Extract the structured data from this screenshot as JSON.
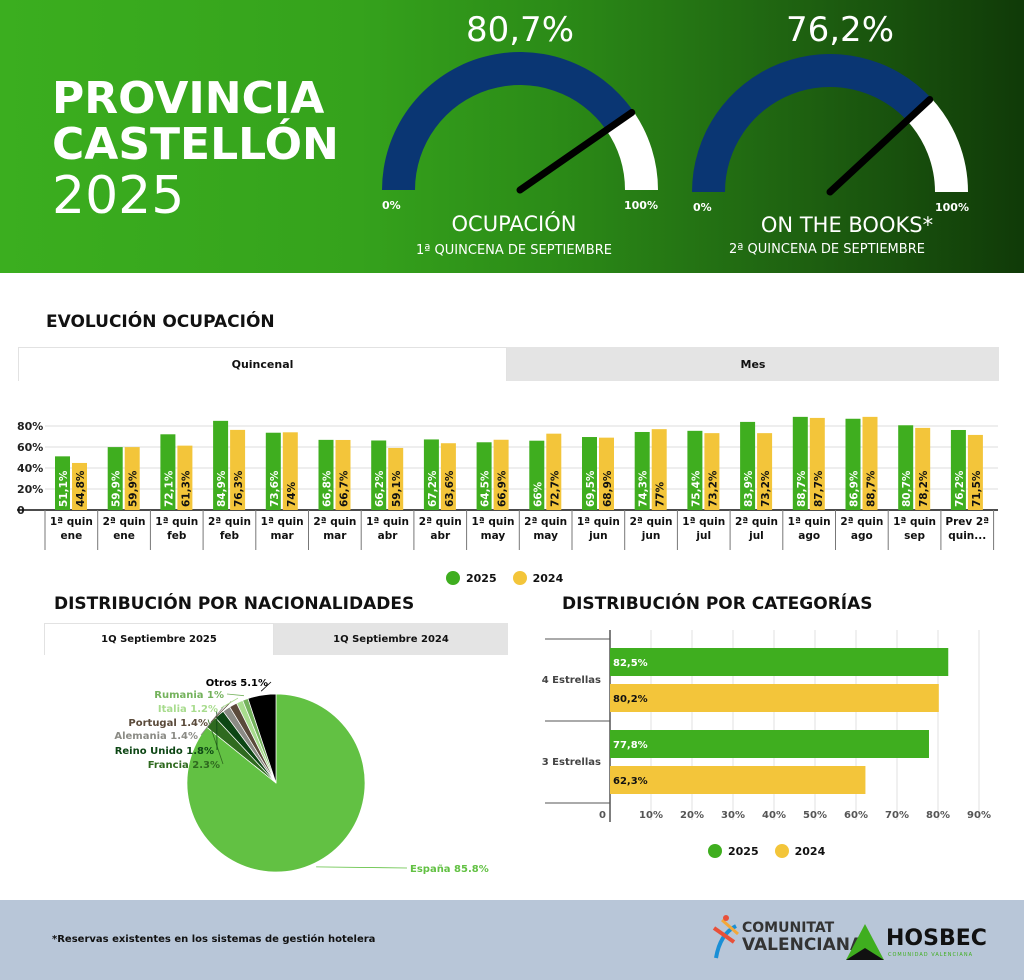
{
  "header": {
    "title_line1": "PROVINCIA",
    "title_line2": "CASTELLÓN",
    "title_line3": "2025",
    "gauges": [
      {
        "value_label": "80,7%",
        "value": 80.7,
        "min_label": "0%",
        "max_label": "100%",
        "name": "OCUPACIÓN",
        "sub": "1ª QUINCENA DE SEPTIEMBRE"
      },
      {
        "value_label": "76,2%",
        "value": 76.2,
        "min_label": "0%",
        "max_label": "100%",
        "name": "ON THE BOOKS*",
        "sub": "2ª QUINCENA DE SEPTIEMBRE"
      }
    ]
  },
  "colors": {
    "c2025": "#3fae1f",
    "c2024": "#f3c53a",
    "gauge_fill": "#0a3673"
  },
  "evolution": {
    "title": "EVOLUCIÓN OCUPACIÓN",
    "tabs": [
      "Quincenal",
      "Mes"
    ],
    "active_tab": "Quincenal"
  },
  "chart_data": [
    {
      "type": "bar",
      "title": "EVOLUCIÓN OCUPACIÓN",
      "ylim": [
        0,
        90
      ],
      "yticks": [
        "0",
        "20%",
        "40%",
        "60%",
        "80%"
      ],
      "categories": [
        [
          "1ª quin",
          "ene"
        ],
        [
          "2ª quin",
          "ene"
        ],
        [
          "1ª quin",
          "feb"
        ],
        [
          "2ª quin",
          "feb"
        ],
        [
          "1ª quin",
          "mar"
        ],
        [
          "2ª quin",
          "mar"
        ],
        [
          "1ª quin",
          "abr"
        ],
        [
          "2ª quin",
          "abr"
        ],
        [
          "1ª quin",
          "may"
        ],
        [
          "2ª quin",
          "may"
        ],
        [
          "1ª quin",
          "jun"
        ],
        [
          "2ª quin",
          "jun"
        ],
        [
          "1ª quin",
          "jul"
        ],
        [
          "2ª quin",
          "jul"
        ],
        [
          "1ª quin",
          "ago"
        ],
        [
          "2ª quin",
          "ago"
        ],
        [
          "1ª quin",
          "sep"
        ],
        [
          "Prev 2ª",
          "quin..."
        ]
      ],
      "series": [
        {
          "name": "2025",
          "values": [
            51.1,
            59.9,
            72.1,
            84.9,
            73.6,
            66.8,
            66.2,
            67.2,
            64.5,
            66,
            69.5,
            74.3,
            75.4,
            83.9,
            88.7,
            86.9,
            80.7,
            76.2
          ],
          "labels": [
            "51,1%",
            "59,9%",
            "72,1%",
            "84,9%",
            "73,6%",
            "66,8%",
            "66,2%",
            "67,2%",
            "64,5%",
            "66%",
            "69,5%",
            "74,3%",
            "75,4%",
            "83,9%",
            "88,7%",
            "86,9%",
            "80,7%",
            "76,2%"
          ]
        },
        {
          "name": "2024",
          "values": [
            44.8,
            59.9,
            61.3,
            76.3,
            74,
            66.7,
            59.1,
            63.6,
            66.9,
            72.7,
            68.9,
            77,
            73.2,
            73.2,
            87.7,
            88.7,
            78.2,
            71.5
          ],
          "labels": [
            "44,8%",
            "59,9%",
            "61,3%",
            "76,3%",
            "74%",
            "66,7%",
            "59,1%",
            "63,6%",
            "66,9%",
            "72,7%",
            "68,9%",
            "77%",
            "73,2%",
            "73,2%",
            "87,7%",
            "88,7%",
            "78,2%",
            "71,5%"
          ]
        }
      ],
      "legend": [
        "2025",
        "2024"
      ],
      "legend_position": "bottom"
    },
    {
      "type": "pie",
      "title": "DISTRIBUCIÓN POR NACIONALIDADES",
      "tabs": [
        "1Q Septiembre 2025",
        "1Q Septiembre 2024"
      ],
      "active_tab": "1Q Septiembre 2025",
      "slices": [
        {
          "label": "España 85.8%",
          "value": 85.8,
          "color": "#62c143"
        },
        {
          "label": "Francia 2.3%",
          "value": 2.3,
          "color": "#2f6a1f"
        },
        {
          "label": "Reino Unido 1.8%",
          "value": 1.8,
          "color": "#0d4614"
        },
        {
          "label": "Alemania 1.4%",
          "value": 1.4,
          "color": "#8b8b85"
        },
        {
          "label": "Portugal 1.4%",
          "value": 1.4,
          "color": "#5a4a3a"
        },
        {
          "label": "Italia 1.2%",
          "value": 1.2,
          "color": "#a8dc8e"
        },
        {
          "label": "Rumania 1%",
          "value": 1,
          "color": "#74b25c"
        },
        {
          "label": "Otros 5.1%",
          "value": 5.1,
          "color": "#000000"
        }
      ]
    },
    {
      "type": "bar",
      "orientation": "horizontal",
      "title": "DISTRIBUCIÓN POR CATEGORÍAS",
      "xlim": [
        0,
        90
      ],
      "xticks": [
        "0",
        "10%",
        "20%",
        "30%",
        "40%",
        "50%",
        "60%",
        "70%",
        "80%",
        "90%"
      ],
      "categories": [
        "4 Estrellas",
        "3 Estrellas"
      ],
      "series": [
        {
          "name": "2025",
          "values": [
            82.5,
            77.8
          ],
          "labels": [
            "82,5%",
            "77,8%"
          ]
        },
        {
          "name": "2024",
          "values": [
            80.2,
            62.3
          ],
          "labels": [
            "80,2%",
            "62,3%"
          ]
        }
      ],
      "legend": [
        "2025",
        "2024"
      ],
      "legend_position": "bottom"
    }
  ],
  "footer": {
    "note": "*Reservas existentes en los sistemas de gestión hotelera",
    "logo1_line1": "COMUNITAT",
    "logo1_line2": "VALENCIANA",
    "logo2": "HOSBEC",
    "logo2_sub": "COMUNIDAD VALENCIANA"
  }
}
